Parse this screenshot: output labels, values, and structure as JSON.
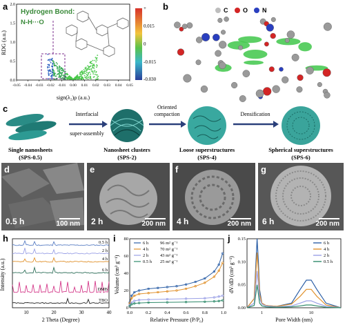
{
  "panels": {
    "a": "a",
    "b": "b",
    "c": "c",
    "d": "d",
    "e": "e",
    "f": "f",
    "g": "g",
    "h": "h",
    "i": "i",
    "j": "j"
  },
  "panel_a": {
    "annotation_title": "Hydrogen Bond:",
    "annotation_bond": "N-H···O",
    "ylabel": "RDG (a.u.)",
    "xlabel": "sign(λ₂)ρ (a.u.)",
    "colorbar_ticks": [
      "+",
      "0.015",
      "0",
      "-0.015",
      "-0.030"
    ]
  },
  "panel_b": {
    "legend": [
      "C",
      "O",
      "N"
    ]
  },
  "panel_c": {
    "stages": [
      {
        "label": "Single nanosheets",
        "code": "(SPS-0.5)"
      },
      {
        "label": "Nanosheet clusters",
        "code": "(SPS-2)"
      },
      {
        "label": "Loose superstructures",
        "code": "(SPS-4)"
      },
      {
        "label": "Spherical superstructures",
        "code": "(SPS-6)"
      }
    ],
    "arrows": [
      {
        "top": "Interfacial",
        "bottom": "super-assembly"
      },
      {
        "top": "Oriented",
        "bottom": "compaction"
      },
      {
        "top": "Densification",
        "bottom": ""
      }
    ]
  },
  "sem": [
    {
      "time": "0.5 h",
      "scale": "100 nm"
    },
    {
      "time": "2 h",
      "scale": "200 nm"
    },
    {
      "time": "4 h",
      "scale": "200 nm"
    },
    {
      "time": "6 h",
      "scale": "200 nm"
    }
  ],
  "chart_data": [
    {
      "id": "a",
      "type": "scatter",
      "xlabel": "sign(λ₂)ρ (a.u.)",
      "ylabel": "RDG (a.u.)",
      "xlim": [
        -0.05,
        0.05
      ],
      "ylim": [
        0,
        2.0
      ],
      "xticks": [
        "-0.05",
        "-0.04",
        "-0.03",
        "-0.02",
        "-0.01",
        "0.00",
        "0.01",
        "0.02",
        "0.03",
        "0.04",
        "0.05"
      ],
      "yticks": [
        "0.0",
        "0.5",
        "1.0",
        "1.5",
        "2.0"
      ],
      "note": "Dense green spike clusters near x=0; blue points near x=-0.03 highlighted by dashed box"
    },
    {
      "id": "h",
      "type": "line",
      "xlabel": "2 Theta (Degree)",
      "ylabel": "Intensity (a.u.)",
      "xlim": [
        5,
        40
      ],
      "xticks": [
        "10",
        "20",
        "30",
        "40"
      ],
      "series": [
        {
          "name": "0.5 h",
          "color": "#5b7fc4"
        },
        {
          "name": "2 h",
          "color": "#9aa0e6"
        },
        {
          "name": "4 h",
          "color": "#e0912c"
        },
        {
          "name": "6 h",
          "color": "#2f6f5a"
        },
        {
          "name": "DMB",
          "color": "#d43a8a"
        },
        {
          "name": "TBO",
          "color": "#222222"
        }
      ]
    },
    {
      "id": "i",
      "type": "line",
      "xlabel": "Relative Pressure (P/P₀)",
      "ylabel": "Volume (cm³ g⁻¹)",
      "xlim": [
        0,
        1.0
      ],
      "ylim": [
        0,
        80
      ],
      "xticks": [
        "0.0",
        "0.2",
        "0.4",
        "0.6",
        "0.8",
        "1.0"
      ],
      "yticks": [
        "0",
        "20",
        "40",
        "60",
        "80"
      ],
      "series": [
        {
          "name": "6 h",
          "area": "96 m² g⁻¹",
          "color": "#2c5fa6",
          "x": [
            0.0,
            0.02,
            0.05,
            0.1,
            0.2,
            0.3,
            0.4,
            0.5,
            0.6,
            0.7,
            0.8,
            0.9,
            0.95,
            0.99
          ],
          "y": [
            6,
            14,
            18,
            20,
            22,
            23,
            24,
            25,
            27,
            30,
            34,
            42,
            50,
            63
          ]
        },
        {
          "name": "4 h",
          "area": "70 m² g⁻¹",
          "color": "#e0912c",
          "x": [
            0.0,
            0.02,
            0.05,
            0.1,
            0.2,
            0.3,
            0.4,
            0.5,
            0.6,
            0.7,
            0.8,
            0.9,
            0.95,
            0.99
          ],
          "y": [
            5,
            11,
            14,
            16,
            17,
            18,
            19,
            20,
            22,
            25,
            29,
            36,
            43,
            52
          ]
        },
        {
          "name": "2 h",
          "area": "43 m² g⁻¹",
          "color": "#9aa0e6",
          "x": [
            0.0,
            0.02,
            0.05,
            0.1,
            0.2,
            0.4,
            0.6,
            0.8,
            0.9,
            0.95,
            0.99
          ],
          "y": [
            3,
            6,
            8,
            9,
            9.5,
            10,
            10.5,
            11,
            12,
            13,
            14
          ]
        },
        {
          "name": "0.5 h",
          "area": "25 m² g⁻¹",
          "color": "#2e8a6a",
          "x": [
            0.0,
            0.02,
            0.05,
            0.1,
            0.2,
            0.4,
            0.6,
            0.8,
            0.9,
            0.95,
            0.99
          ],
          "y": [
            2,
            4,
            5,
            5.5,
            6,
            6.3,
            6.6,
            7,
            7.4,
            7.8,
            8.5
          ]
        }
      ]
    },
    {
      "id": "j",
      "type": "line",
      "xlabel": "Pore Width (nm)",
      "ylabel": "dV/dD (cm³ g⁻¹)",
      "xlim": [
        0.5,
        40
      ],
      "xscale": "log",
      "ylim": [
        0,
        0.15
      ],
      "xticks": [
        "1",
        "10"
      ],
      "yticks": [
        "0.00",
        "0.05",
        "0.10",
        "0.15"
      ],
      "series": [
        {
          "name": "6 h",
          "color": "#2c5fa6",
          "x": [
            0.5,
            0.7,
            0.8,
            0.85,
            0.9,
            1.0,
            1.2,
            2,
            4,
            6,
            8,
            10,
            13,
            20,
            40
          ],
          "y": [
            0,
            0.02,
            0.15,
            0.1,
            0.04,
            0.01,
            0.005,
            0.003,
            0.01,
            0.04,
            0.06,
            0.06,
            0.04,
            0.01,
            0.0
          ]
        },
        {
          "name": "4 h",
          "color": "#e0912c",
          "x": [
            0.5,
            0.7,
            0.8,
            0.85,
            0.9,
            1.0,
            1.2,
            2,
            4,
            6,
            8,
            10,
            13,
            20,
            40
          ],
          "y": [
            0,
            0.02,
            0.12,
            0.08,
            0.03,
            0.01,
            0.005,
            0.003,
            0.008,
            0.025,
            0.04,
            0.04,
            0.025,
            0.006,
            0.0
          ]
        },
        {
          "name": "2 h",
          "color": "#9aa0e6",
          "x": [
            0.5,
            0.7,
            0.8,
            0.85,
            0.9,
            1.0,
            1.2,
            2,
            4,
            6,
            8,
            10,
            13,
            20,
            40
          ],
          "y": [
            0,
            0.01,
            0.08,
            0.05,
            0.02,
            0.008,
            0.004,
            0.002,
            0.004,
            0.01,
            0.015,
            0.015,
            0.01,
            0.003,
            0.0
          ]
        },
        {
          "name": "0.5 h",
          "color": "#2e8a6a",
          "x": [
            0.5,
            0.7,
            0.8,
            0.85,
            0.9,
            1.0,
            1.2,
            2,
            4,
            6,
            8,
            10,
            13,
            20,
            40
          ],
          "y": [
            0,
            0.005,
            0.05,
            0.03,
            0.01,
            0.004,
            0.002,
            0.001,
            0.002,
            0.004,
            0.006,
            0.006,
            0.004,
            0.001,
            0.0
          ]
        }
      ]
    }
  ]
}
